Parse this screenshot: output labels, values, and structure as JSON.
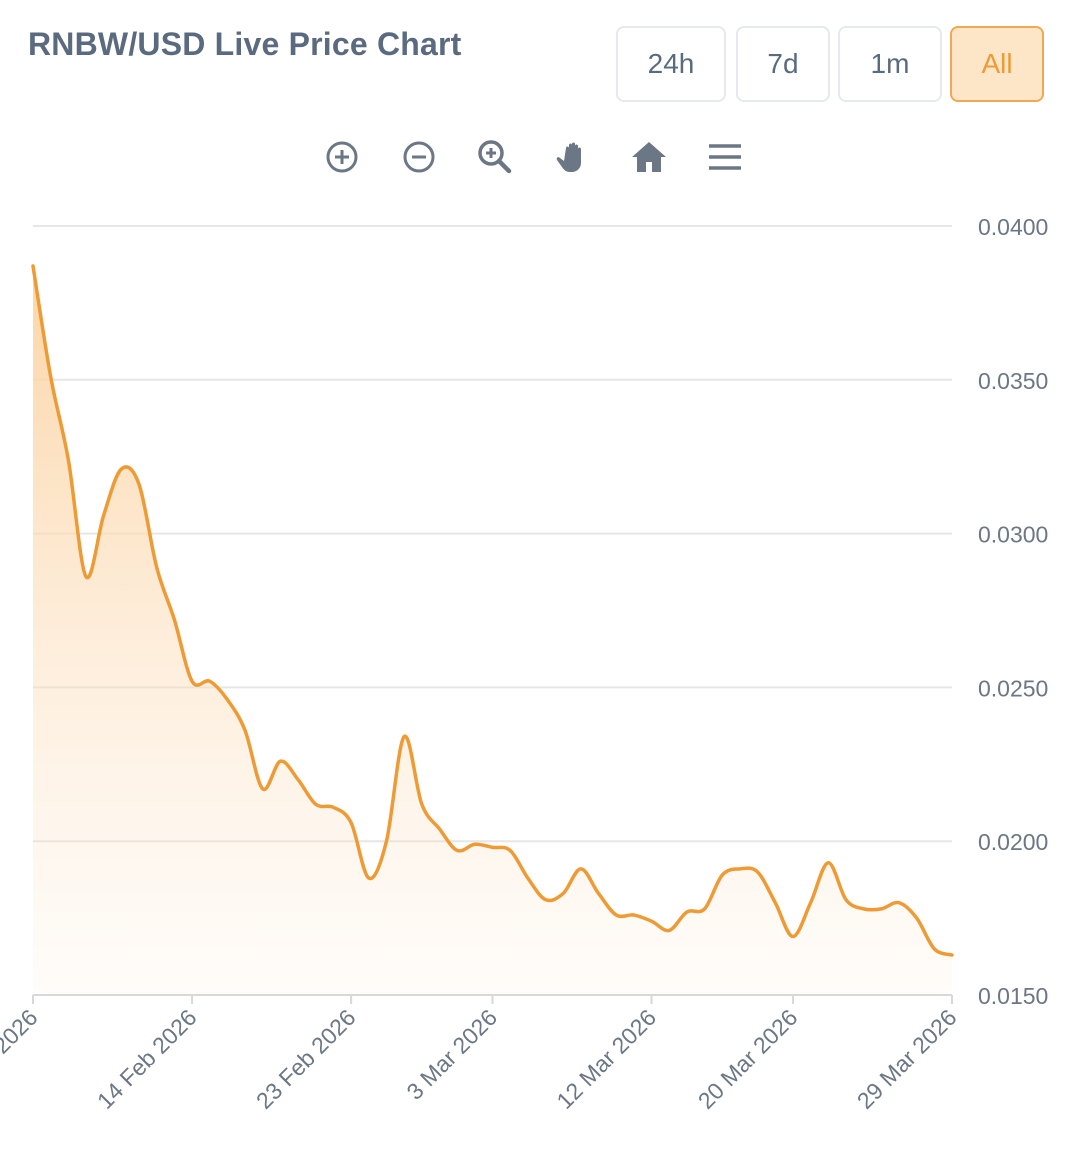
{
  "header": {
    "title": "RNBW/USD Live Price Chart"
  },
  "range_buttons": [
    {
      "label": "24h",
      "active": false
    },
    {
      "label": "7d",
      "active": false
    },
    {
      "label": "1m",
      "active": false
    },
    {
      "label": "All",
      "active": true
    }
  ],
  "toolbar": {
    "icons": [
      "zoom-in-icon",
      "zoom-out-icon",
      "zoom-selection-icon",
      "pan-hand-icon",
      "reset-home-icon",
      "menu-icon"
    ]
  },
  "colors": {
    "line": "#ee9a35",
    "fill": "#fbd8ae",
    "active_button_bg": "#fde6c8",
    "active_button_text": "#ee9a35",
    "text": "#5a6b7f",
    "grid": "#e6e6e6"
  },
  "chart_data": {
    "type": "area",
    "y_ticks": [
      "0.0400",
      "0.0350",
      "0.0300",
      "0.0250",
      "0.0200",
      "0.0150"
    ],
    "y_tick_values": [
      0.04,
      0.035,
      0.03,
      0.025,
      0.02,
      0.015
    ],
    "ylim": [
      0.015,
      0.04
    ],
    "x_ticks": [
      "2026",
      "14 Feb 2026",
      "23 Feb 2026",
      "3 Mar 2026",
      "12 Mar 2026",
      "20 Mar 2026",
      "29 Mar 2026"
    ],
    "x_tick_dates": [
      "2026-02-05",
      "2026-02-14",
      "2026-02-23",
      "2026-03-03",
      "2026-03-12",
      "2026-03-20",
      "2026-03-29"
    ],
    "y_axis_position": "right",
    "grid": true,
    "series": [
      {
        "values": [
          [
            "2026-02-05",
            0.0387
          ],
          [
            "2026-02-06",
            0.0351
          ],
          [
            "2026-02-07",
            0.0324
          ],
          [
            "2026-02-08",
            0.0286
          ],
          [
            "2026-02-09",
            0.0306
          ],
          [
            "2026-02-10",
            0.0321
          ],
          [
            "2026-02-11",
            0.0316
          ],
          [
            "2026-02-12",
            0.0289
          ],
          [
            "2026-02-13",
            0.0272
          ],
          [
            "2026-02-14",
            0.0252
          ],
          [
            "2026-02-15",
            0.0252
          ],
          [
            "2026-02-16",
            0.0246
          ],
          [
            "2026-02-17",
            0.0236
          ],
          [
            "2026-02-18",
            0.0217
          ],
          [
            "2026-02-19",
            0.0226
          ],
          [
            "2026-02-20",
            0.022
          ],
          [
            "2026-02-21",
            0.0212
          ],
          [
            "2026-02-22",
            0.0211
          ],
          [
            "2026-02-23",
            0.0206
          ],
          [
            "2026-02-24",
            0.0188
          ],
          [
            "2026-02-25",
            0.02
          ],
          [
            "2026-02-26",
            0.0234
          ],
          [
            "2026-02-27",
            0.0212
          ],
          [
            "2026-02-28",
            0.0204
          ],
          [
            "2026-03-01",
            0.0197
          ],
          [
            "2026-03-02",
            0.0199
          ],
          [
            "2026-03-03",
            0.0198
          ],
          [
            "2026-03-04",
            0.0197
          ],
          [
            "2026-03-05",
            0.0188
          ],
          [
            "2026-03-06",
            0.0181
          ],
          [
            "2026-03-07",
            0.0183
          ],
          [
            "2026-03-08",
            0.0191
          ],
          [
            "2026-03-09",
            0.0183
          ],
          [
            "2026-03-10",
            0.0176
          ],
          [
            "2026-03-11",
            0.0176
          ],
          [
            "2026-03-12",
            0.0174
          ],
          [
            "2026-03-13",
            0.0171
          ],
          [
            "2026-03-14",
            0.0177
          ],
          [
            "2026-03-15",
            0.0178
          ],
          [
            "2026-03-16",
            0.0189
          ],
          [
            "2026-03-17",
            0.0191
          ],
          [
            "2026-03-18",
            0.019
          ],
          [
            "2026-03-19",
            0.018
          ],
          [
            "2026-03-20",
            0.0169
          ],
          [
            "2026-03-21",
            0.018
          ],
          [
            "2026-03-22",
            0.0193
          ],
          [
            "2026-03-23",
            0.0181
          ],
          [
            "2026-03-24",
            0.0178
          ],
          [
            "2026-03-25",
            0.0178
          ],
          [
            "2026-03-26",
            0.018
          ],
          [
            "2026-03-27",
            0.0175
          ],
          [
            "2026-03-28",
            0.0165
          ],
          [
            "2026-03-29",
            0.0163
          ]
        ]
      }
    ]
  }
}
